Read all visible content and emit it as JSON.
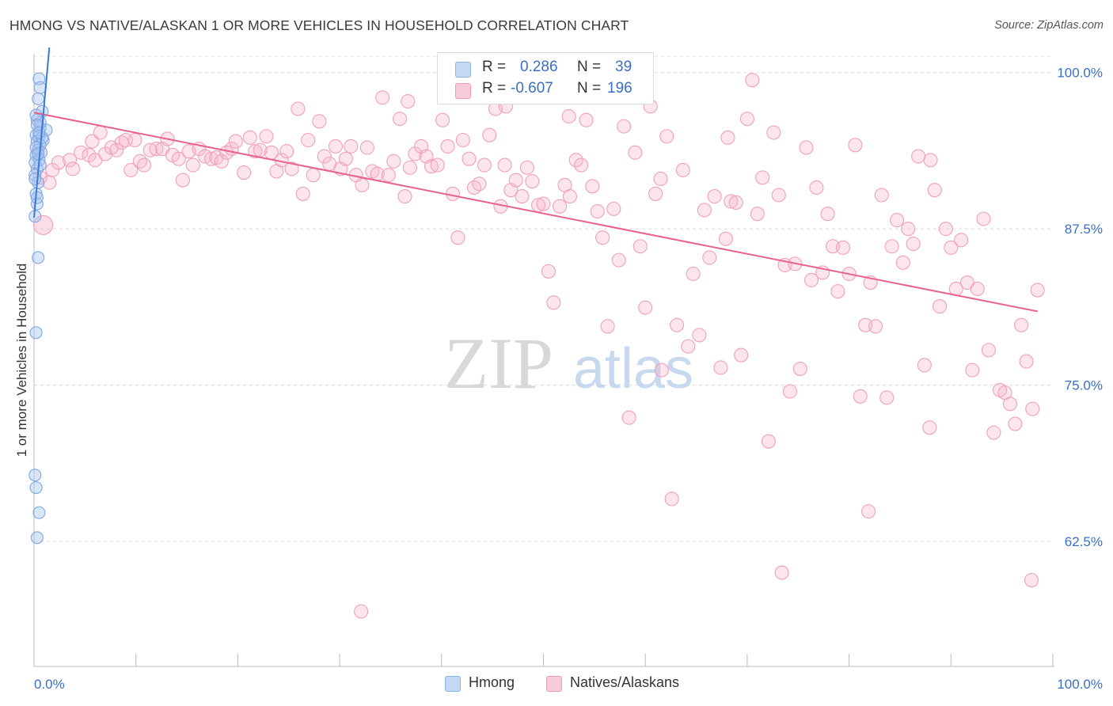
{
  "title": "HMONG VS NATIVE/ALASKAN 1 OR MORE VEHICLES IN HOUSEHOLD CORRELATION CHART",
  "source": "Source: ZipAtlas.com",
  "watermark": {
    "zip": "ZIP",
    "atlas": "atlas"
  },
  "legend": {
    "series": [
      {
        "name": "Hmong",
        "r_label": "R =",
        "r": "0.286",
        "n_label": "N =",
        "n": "39",
        "color": "#8db3e8",
        "fill": "#c6d9f4"
      },
      {
        "name": "Natives/Alaskans",
        "r_label": "R =",
        "r": "-0.607",
        "n_label": "N =",
        "n": "196",
        "color": "#f09ab6",
        "fill": "#f8cbd9"
      }
    ]
  },
  "chart_data": {
    "type": "scatter",
    "title": "HMONG VS NATIVE/ALASKAN 1 OR MORE VEHICLES IN HOUSEHOLD CORRELATION CHART",
    "xlabel": "",
    "ylabel": "1 or more Vehicles in Household",
    "xlim": [
      0,
      100
    ],
    "ylim": [
      52.5,
      101.5
    ],
    "x_tick_labels": [
      "0.0%",
      "100.0%"
    ],
    "y_ticks": [
      62.5,
      75.0,
      87.5,
      100.0
    ],
    "y_tick_labels": [
      "62.5%",
      "75.0%",
      "87.5%",
      "100.0%"
    ],
    "grid": true,
    "series": [
      {
        "name": "Hmong",
        "color": "#3a7bd5",
        "trend": {
          "x": [
            0.0,
            1.5
          ],
          "y": [
            88.4,
            102.0
          ]
        },
        "points": [
          [
            0.5,
            99.5
          ],
          [
            0.6,
            98.8
          ],
          [
            0.4,
            97.9
          ],
          [
            0.8,
            96.9
          ],
          [
            0.3,
            96.2
          ],
          [
            0.6,
            95.6
          ],
          [
            1.2,
            95.4
          ],
          [
            0.2,
            95.0
          ],
          [
            0.5,
            94.9
          ],
          [
            0.9,
            94.6
          ],
          [
            0.3,
            94.5
          ],
          [
            0.6,
            94.2
          ],
          [
            0.4,
            93.8
          ],
          [
            0.7,
            93.6
          ],
          [
            0.2,
            93.4
          ],
          [
            0.5,
            93.0
          ],
          [
            0.3,
            92.3
          ],
          [
            0.1,
            91.8
          ],
          [
            0.4,
            91.2
          ],
          [
            0.2,
            90.3
          ],
          [
            0.3,
            89.5
          ],
          [
            0.1,
            88.5
          ],
          [
            0.4,
            85.2
          ],
          [
            0.2,
            79.2
          ],
          [
            0.1,
            67.8
          ],
          [
            0.2,
            66.8
          ],
          [
            0.5,
            64.8
          ],
          [
            0.3,
            62.8
          ],
          [
            0.6,
            96.0
          ],
          [
            0.2,
            96.6
          ],
          [
            0.8,
            94.8
          ],
          [
            0.1,
            92.8
          ],
          [
            0.3,
            95.8
          ],
          [
            0.5,
            95.2
          ],
          [
            0.2,
            94.0
          ],
          [
            0.4,
            93.5
          ],
          [
            0.6,
            92.6
          ],
          [
            0.1,
            91.5
          ],
          [
            0.3,
            90.0
          ]
        ]
      },
      {
        "name": "Natives/Alaskans",
        "color": "#e8628e",
        "trend": {
          "x": [
            0.0,
            98.5
          ],
          "y": [
            96.8,
            80.9
          ]
        },
        "points": [
          [
            0.6,
            91.6
          ],
          [
            1.5,
            91.2
          ],
          [
            1.8,
            92.2
          ],
          [
            2.4,
            92.8
          ],
          [
            3.5,
            93.0
          ],
          [
            3.8,
            92.3
          ],
          [
            4.6,
            93.6
          ],
          [
            5.4,
            93.4
          ],
          [
            5.7,
            94.5
          ],
          [
            6.0,
            93.0
          ],
          [
            6.5,
            95.2
          ],
          [
            7.0,
            93.5
          ],
          [
            7.6,
            94.0
          ],
          [
            8.1,
            93.8
          ],
          [
            8.6,
            94.4
          ],
          [
            9.0,
            94.6
          ],
          [
            9.5,
            92.2
          ],
          [
            9.9,
            94.6
          ],
          [
            10.4,
            92.9
          ],
          [
            10.8,
            92.6
          ],
          [
            11.4,
            93.8
          ],
          [
            12.0,
            93.9
          ],
          [
            12.6,
            93.9
          ],
          [
            13.1,
            94.7
          ],
          [
            13.6,
            93.4
          ],
          [
            14.2,
            93.1
          ],
          [
            14.6,
            91.4
          ],
          [
            15.2,
            93.7
          ],
          [
            15.6,
            92.6
          ],
          [
            16.2,
            93.9
          ],
          [
            16.8,
            93.3
          ],
          [
            17.4,
            93.1
          ],
          [
            17.9,
            93.2
          ],
          [
            18.4,
            92.9
          ],
          [
            18.9,
            93.6
          ],
          [
            19.4,
            93.9
          ],
          [
            19.8,
            94.5
          ],
          [
            20.6,
            92.0
          ],
          [
            21.2,
            94.8
          ],
          [
            21.7,
            93.7
          ],
          [
            22.2,
            93.8
          ],
          [
            22.8,
            94.9
          ],
          [
            23.3,
            93.6
          ],
          [
            23.8,
            92.1
          ],
          [
            24.3,
            93.0
          ],
          [
            24.8,
            93.7
          ],
          [
            25.3,
            92.3
          ],
          [
            25.9,
            97.1
          ],
          [
            26.4,
            90.3
          ],
          [
            26.9,
            94.6
          ],
          [
            27.4,
            91.8
          ],
          [
            28.0,
            96.1
          ],
          [
            28.5,
            93.3
          ],
          [
            29.0,
            92.7
          ],
          [
            29.6,
            94.1
          ],
          [
            30.1,
            92.3
          ],
          [
            30.6,
            93.1
          ],
          [
            31.1,
            94.1
          ],
          [
            31.6,
            91.8
          ],
          [
            32.2,
            91.0
          ],
          [
            32.7,
            94.0
          ],
          [
            33.2,
            92.1
          ],
          [
            33.7,
            91.9
          ],
          [
            34.2,
            98.0
          ],
          [
            34.8,
            91.8
          ],
          [
            35.3,
            92.9
          ],
          [
            35.9,
            96.3
          ],
          [
            36.4,
            90.1
          ],
          [
            36.9,
            92.4
          ],
          [
            37.4,
            93.5
          ],
          [
            38.0,
            94.1
          ],
          [
            38.5,
            93.3
          ],
          [
            39.0,
            92.5
          ],
          [
            39.6,
            92.6
          ],
          [
            40.1,
            96.2
          ],
          [
            40.6,
            94.1
          ],
          [
            41.1,
            90.3
          ],
          [
            41.6,
            86.8
          ],
          [
            42.1,
            94.6
          ],
          [
            42.7,
            93.1
          ],
          [
            43.2,
            90.8
          ],
          [
            43.7,
            91.1
          ],
          [
            44.2,
            92.6
          ],
          [
            44.7,
            95.0
          ],
          [
            45.3,
            97.1
          ],
          [
            45.8,
            89.3
          ],
          [
            46.3,
            97.3
          ],
          [
            46.8,
            90.6
          ],
          [
            47.3,
            91.4
          ],
          [
            47.9,
            90.1
          ],
          [
            48.4,
            92.4
          ],
          [
            48.9,
            91.3
          ],
          [
            49.5,
            89.4
          ],
          [
            50.0,
            89.5
          ],
          [
            50.5,
            84.1
          ],
          [
            51.0,
            81.6
          ],
          [
            51.6,
            89.3
          ],
          [
            52.1,
            91.0
          ],
          [
            52.6,
            90.1
          ],
          [
            53.2,
            93.0
          ],
          [
            53.7,
            92.6
          ],
          [
            54.2,
            96.2
          ],
          [
            54.8,
            90.9
          ],
          [
            55.3,
            88.9
          ],
          [
            55.8,
            86.8
          ],
          [
            56.3,
            79.7
          ],
          [
            56.9,
            89.1
          ],
          [
            57.4,
            85.0
          ],
          [
            57.9,
            95.7
          ],
          [
            58.4,
            72.4
          ],
          [
            59.0,
            93.6
          ],
          [
            59.5,
            86.1
          ],
          [
            60.0,
            81.2
          ],
          [
            60.5,
            97.3
          ],
          [
            61.0,
            90.3
          ],
          [
            61.6,
            76.2
          ],
          [
            62.1,
            94.9
          ],
          [
            62.6,
            65.9
          ],
          [
            63.1,
            79.8
          ],
          [
            63.7,
            92.2
          ],
          [
            64.2,
            78.1
          ],
          [
            64.7,
            83.9
          ],
          [
            65.3,
            79.0
          ],
          [
            65.8,
            89.0
          ],
          [
            66.3,
            85.2
          ],
          [
            66.8,
            90.1
          ],
          [
            67.4,
            76.4
          ],
          [
            67.9,
            86.7
          ],
          [
            68.4,
            89.7
          ],
          [
            68.9,
            89.6
          ],
          [
            69.4,
            77.4
          ],
          [
            70.0,
            96.3
          ],
          [
            70.5,
            99.4
          ],
          [
            71.0,
            88.7
          ],
          [
            71.5,
            91.6
          ],
          [
            72.1,
            70.5
          ],
          [
            72.6,
            95.2
          ],
          [
            73.1,
            90.2
          ],
          [
            73.7,
            84.6
          ],
          [
            74.2,
            74.5
          ],
          [
            74.7,
            84.7
          ],
          [
            75.2,
            76.3
          ],
          [
            75.8,
            94.0
          ],
          [
            76.3,
            83.4
          ],
          [
            76.8,
            90.8
          ],
          [
            77.4,
            84.0
          ],
          [
            77.9,
            88.7
          ],
          [
            78.4,
            86.1
          ],
          [
            78.9,
            82.5
          ],
          [
            79.4,
            86.0
          ],
          [
            80.0,
            83.9
          ],
          [
            80.6,
            94.2
          ],
          [
            81.1,
            74.1
          ],
          [
            81.6,
            79.8
          ],
          [
            82.1,
            83.2
          ],
          [
            82.6,
            79.7
          ],
          [
            83.2,
            90.2
          ],
          [
            83.7,
            74.0
          ],
          [
            84.2,
            86.1
          ],
          [
            84.7,
            88.2
          ],
          [
            85.3,
            84.8
          ],
          [
            85.8,
            87.5
          ],
          [
            86.3,
            86.3
          ],
          [
            86.8,
            93.3
          ],
          [
            87.4,
            76.6
          ],
          [
            87.9,
            71.6
          ],
          [
            88.4,
            90.6
          ],
          [
            88.9,
            81.3
          ],
          [
            89.5,
            87.5
          ],
          [
            90.0,
            86.0
          ],
          [
            90.5,
            82.7
          ],
          [
            91.0,
            86.6
          ],
          [
            91.6,
            83.2
          ],
          [
            92.1,
            76.2
          ],
          [
            92.6,
            82.7
          ],
          [
            93.2,
            88.3
          ],
          [
            93.7,
            77.8
          ],
          [
            94.2,
            71.2
          ],
          [
            94.8,
            74.6
          ],
          [
            95.3,
            74.4
          ],
          [
            95.8,
            73.5
          ],
          [
            96.3,
            71.9
          ],
          [
            96.9,
            79.8
          ],
          [
            97.4,
            76.9
          ],
          [
            98.0,
            73.1
          ],
          [
            98.5,
            82.6
          ],
          [
            46.2,
            92.6
          ],
          [
            32.1,
            56.9
          ],
          [
            68.1,
            94.8
          ],
          [
            73.4,
            60.0
          ],
          [
            81.9,
            64.9
          ],
          [
            97.9,
            59.4
          ],
          [
            61.5,
            91.5
          ],
          [
            36.7,
            97.7
          ],
          [
            88.0,
            93.0
          ],
          [
            52.5,
            96.5
          ]
        ]
      }
    ]
  }
}
